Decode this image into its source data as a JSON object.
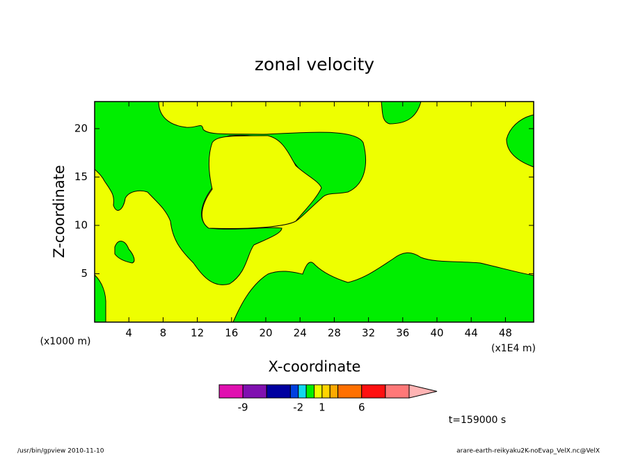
{
  "chart_data": {
    "type": "contour",
    "title": "zonal velocity",
    "x_label": "X-coordinate",
    "y_label": "Z-coordinate",
    "x_unit": "(x1E4 m)",
    "y_unit": "(x1000 m)",
    "xlim": [
      0,
      51.3
    ],
    "xticks": [
      4,
      8,
      12,
      16,
      20,
      24,
      28,
      32,
      36,
      40,
      44,
      48
    ],
    "ylim": [
      0,
      22.8
    ],
    "yticks": [
      5,
      10,
      15,
      20
    ],
    "levels": [
      -12,
      -9,
      -6,
      -3,
      -2,
      -1,
      0,
      1,
      2,
      3,
      6,
      9,
      12
    ],
    "colors": [
      "#e010b0",
      "#8010b0",
      "#0000a0",
      "#0040e0",
      "#10d8f0",
      "#00ee00",
      "#eeff00",
      "#ffd400",
      "#ffaa00",
      "#ff7000",
      "#ff1010",
      "#ff7878"
    ],
    "extend_color": "#ffb4b4",
    "colorbar_ticks": [
      -9,
      -2,
      1,
      6
    ],
    "time_label": "t=159000 s",
    "footer_left": "/usr/bin/gpview   2010-11-10",
    "footer_right": "arare-earth-reikyaku2K-noEvap_VelX.nc@VelX"
  }
}
